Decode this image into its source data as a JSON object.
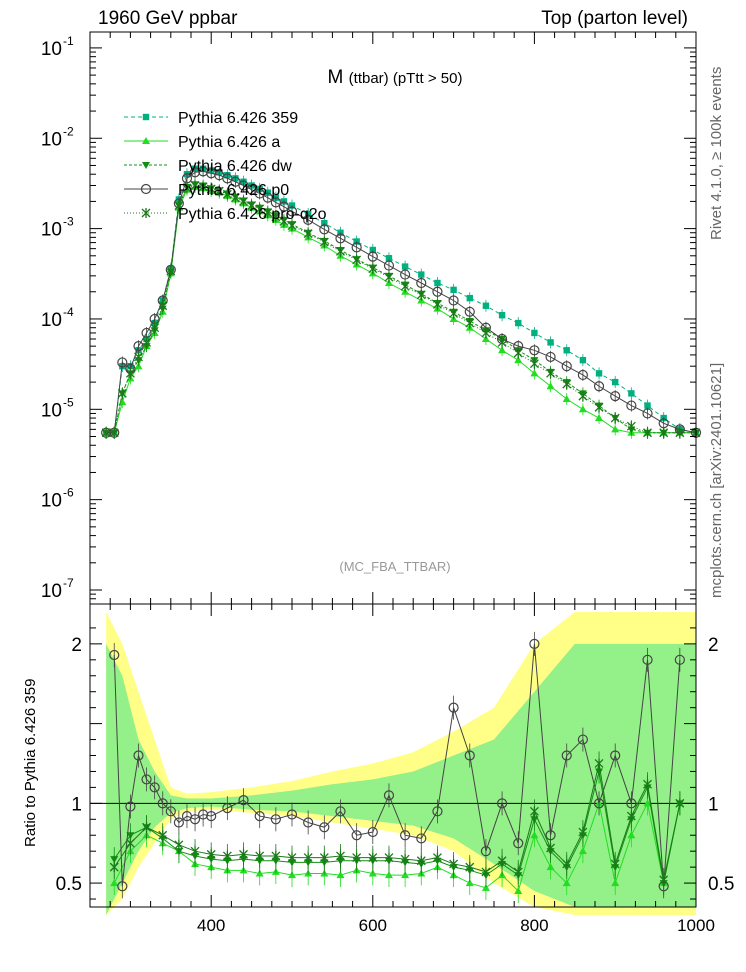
{
  "header": {
    "left": "1960 GeV ppbar",
    "right": "Top (parton level)"
  },
  "side": {
    "rivet": "Rivet 4.1.0, ≥ 100k events",
    "source": "mcplots.cern.ch [arXiv:2401.10621]"
  },
  "chart_data": [
    {
      "type": "line",
      "title": "M (ttbar) (pTtt > 50)",
      "title_main": "M",
      "title_sub": "(ttbar) (pTtt > 50)",
      "watermark": "(MC_FBA_TTBAR)",
      "xlabel": "",
      "ylabel": "",
      "yscale": "log",
      "xlim": [
        250,
        1000
      ],
      "ylim": [
        7e-08,
        0.15
      ],
      "x_ticks": [
        400,
        600,
        800,
        1000
      ],
      "y_ticks": [
        {
          "v": 1e-07,
          "label": "10",
          "exp": "-7"
        },
        {
          "v": 1e-06,
          "label": "10",
          "exp": "-6"
        },
        {
          "v": 1e-05,
          "label": "10",
          "exp": "-5"
        },
        {
          "v": 0.0001,
          "label": "10",
          "exp": "-4"
        },
        {
          "v": 0.001,
          "label": "10",
          "exp": "-3"
        },
        {
          "v": 0.01,
          "label": "10",
          "exp": "-2"
        },
        {
          "v": 0.1,
          "label": "10",
          "exp": "-1"
        }
      ],
      "series": [
        {
          "name": "Pythia 6.426 359",
          "color": "#00b080",
          "marker": "square",
          "dash": "4,3",
          "x": [
            270,
            280,
            290,
            300,
            310,
            320,
            330,
            340,
            350,
            360,
            370,
            380,
            390,
            400,
            410,
            420,
            430,
            440,
            450,
            460,
            470,
            480,
            490,
            500,
            520,
            540,
            560,
            580,
            600,
            620,
            640,
            660,
            680,
            700,
            720,
            740,
            760,
            780,
            800,
            820,
            840,
            860,
            880,
            900,
            920,
            940,
            960,
            980,
            1000
          ],
          "y": [
            5.5e-06,
            5.5e-06,
            3e-05,
            3e-05,
            4.5e-05,
            6e-05,
            9e-05,
            0.00016,
            0.00036,
            0.0021,
            0.004,
            0.0046,
            0.0046,
            0.0044,
            0.0042,
            0.0039,
            0.0036,
            0.0033,
            0.003,
            0.00275,
            0.0025,
            0.0022,
            0.002,
            0.0018,
            0.00145,
            0.00115,
            0.0009,
            0.00072,
            0.00058,
            0.00047,
            0.00038,
            0.00031,
            0.00025,
            0.00021,
            0.00017,
            0.00014,
            0.00011,
            9e-05,
            7e-05,
            5.5e-05,
            4.5e-05,
            3.5e-05,
            2.5e-05,
            2e-05,
            1.5e-05,
            1.1e-05,
            8e-06,
            6e-06,
            5.5e-06
          ]
        },
        {
          "name": "Pythia 6.426 a",
          "color": "#22dd22",
          "marker": "triangle-up",
          "dash": "",
          "x": [
            270,
            280,
            290,
            300,
            310,
            320,
            330,
            340,
            350,
            360,
            370,
            380,
            390,
            400,
            410,
            420,
            430,
            440,
            450,
            460,
            470,
            480,
            490,
            500,
            520,
            540,
            560,
            580,
            600,
            620,
            640,
            660,
            680,
            700,
            720,
            740,
            760,
            780,
            800,
            820,
            840,
            860,
            880,
            900,
            920,
            940,
            960,
            980,
            1000
          ],
          "y": [
            5.5e-06,
            5.5e-06,
            1.2e-05,
            2.2e-05,
            3e-05,
            5e-05,
            7e-05,
            0.00012,
            0.00032,
            0.0017,
            0.0027,
            0.0029,
            0.0028,
            0.0026,
            0.0025,
            0.0023,
            0.0021,
            0.0019,
            0.0017,
            0.00155,
            0.0014,
            0.00125,
            0.0011,
            0.001,
            0.0008,
            0.00065,
            0.0005,
            0.0004,
            0.00032,
            0.00025,
            0.0002,
            0.00016,
            0.00013,
            0.0001,
            8e-05,
            6e-05,
            4.5e-05,
            3.5e-05,
            2.5e-05,
            1.8e-05,
            1.3e-05,
            1e-05,
            8e-06,
            6e-06,
            5.5e-06,
            5.5e-06,
            5.5e-06,
            5.5e-06,
            5.5e-06
          ]
        },
        {
          "name": "Pythia 6.426 dw",
          "color": "#109010",
          "marker": "triangle-down",
          "dash": "3,2",
          "x": [
            270,
            280,
            290,
            300,
            310,
            320,
            330,
            340,
            350,
            360,
            370,
            380,
            390,
            400,
            410,
            420,
            430,
            440,
            450,
            460,
            470,
            480,
            490,
            500,
            520,
            540,
            560,
            580,
            600,
            620,
            640,
            660,
            680,
            700,
            720,
            740,
            760,
            780,
            800,
            820,
            840,
            860,
            880,
            900,
            920,
            940,
            960,
            980,
            1000
          ],
          "y": [
            5.5e-06,
            5.5e-06,
            1.5e-05,
            2.5e-05,
            3.5e-05,
            5e-05,
            7.5e-05,
            0.00013,
            0.00033,
            0.0018,
            0.0029,
            0.0031,
            0.003,
            0.0028,
            0.00265,
            0.00245,
            0.00225,
            0.00205,
            0.00185,
            0.0017,
            0.00155,
            0.0014,
            0.00125,
            0.00112,
            0.0009,
            0.00073,
            0.00058,
            0.00046,
            0.00037,
            0.0003,
            0.00024,
            0.00019,
            0.00015,
            0.00012,
            9.5e-05,
            7.5e-05,
            6e-05,
            4.5e-05,
            3.5e-05,
            2.6e-05,
            2e-05,
            1.5e-05,
            1.1e-05,
            8e-06,
            6e-06,
            5.5e-06,
            5.5e-06,
            5.5e-06,
            5.5e-06
          ]
        },
        {
          "name": "Pythia 6.426 p0",
          "color": "#444444",
          "marker": "circle-open",
          "dash": "",
          "x": [
            270,
            280,
            290,
            300,
            310,
            320,
            330,
            340,
            350,
            360,
            370,
            380,
            390,
            400,
            410,
            420,
            430,
            440,
            450,
            460,
            470,
            480,
            490,
            500,
            520,
            540,
            560,
            580,
            600,
            620,
            640,
            660,
            680,
            700,
            720,
            740,
            760,
            780,
            800,
            820,
            840,
            860,
            880,
            900,
            920,
            940,
            960,
            980,
            1000
          ],
          "y": [
            5.5e-06,
            5.5e-06,
            3.3e-05,
            2.8e-05,
            5e-05,
            7e-05,
            0.0001,
            0.00016,
            0.00035,
            0.0019,
            0.0036,
            0.0042,
            0.0043,
            0.0041,
            0.0039,
            0.0036,
            0.0033,
            0.003,
            0.0027,
            0.00245,
            0.0022,
            0.00195,
            0.00175,
            0.00155,
            0.00125,
            0.00098,
            0.00078,
            0.00062,
            0.00049,
            0.00039,
            0.00031,
            0.00025,
            0.0002,
            0.00016,
            0.00012,
            8e-05,
            6e-05,
            5e-05,
            4.5e-05,
            3.8e-05,
            3e-05,
            2.4e-05,
            1.8e-05,
            1.4e-05,
            1.1e-05,
            9e-06,
            7e-06,
            6e-06,
            5.5e-06
          ]
        },
        {
          "name": "Pythia 6.426 pro-q2o",
          "color": "#1a7a1a",
          "marker": "star",
          "dash": "1,2",
          "x": [
            270,
            280,
            290,
            300,
            310,
            320,
            330,
            340,
            350,
            360,
            370,
            380,
            390,
            400,
            410,
            420,
            430,
            440,
            450,
            460,
            470,
            480,
            490,
            500,
            520,
            540,
            560,
            580,
            600,
            620,
            640,
            660,
            680,
            700,
            720,
            740,
            760,
            780,
            800,
            820,
            840,
            860,
            880,
            900,
            920,
            940,
            960,
            980,
            1000
          ],
          "y": [
            5.5e-06,
            5.5e-06,
            1.5e-05,
            2.5e-05,
            3.8e-05,
            5.5e-05,
            8e-05,
            0.00014,
            0.00034,
            0.0018,
            0.0028,
            0.003,
            0.0029,
            0.00275,
            0.0026,
            0.0024,
            0.0022,
            0.002,
            0.0018,
            0.00165,
            0.0015,
            0.00135,
            0.0012,
            0.00108,
            0.00088,
            0.00071,
            0.00056,
            0.00045,
            0.00036,
            0.00029,
            0.00023,
            0.000185,
            0.000145,
            0.000115,
            9e-05,
            7e-05,
            5.5e-05,
            4.2e-05,
            3.2e-05,
            2.5e-05,
            1.9e-05,
            1.4e-05,
            1.05e-05,
            8e-06,
            6.5e-06,
            5.5e-06,
            5.5e-06,
            5.5e-06,
            5.5e-06
          ]
        }
      ]
    },
    {
      "type": "line",
      "title": "",
      "ylabel": "Ratio to Pythia 6.426 359",
      "yscale": "linear",
      "xlim": [
        250,
        1000
      ],
      "ylim": [
        0.35,
        2.25
      ],
      "x_ticks": [
        400,
        600,
        800,
        1000
      ],
      "y_ticks": [
        {
          "v": 0.5,
          "label": "0.5"
        },
        {
          "v": 1,
          "label": "1"
        },
        {
          "v": 2,
          "label": "2"
        }
      ],
      "band": {
        "x": [
          270,
          290,
          310,
          330,
          350,
          370,
          400,
          450,
          500,
          550,
          600,
          650,
          700,
          750,
          800,
          850,
          900,
          950,
          1000
        ],
        "yellow_lo": [
          0.3,
          0.4,
          0.6,
          0.75,
          0.9,
          0.95,
          0.96,
          0.94,
          0.92,
          0.88,
          0.84,
          0.8,
          0.7,
          0.5,
          0.35,
          0.3,
          0.3,
          0.3,
          0.3
        ],
        "yellow_hi": [
          2.2,
          2.0,
          1.7,
          1.4,
          1.1,
          1.06,
          1.07,
          1.1,
          1.14,
          1.2,
          1.25,
          1.32,
          1.45,
          1.6,
          2.0,
          2.2,
          2.2,
          2.2,
          2.2
        ],
        "green_lo": [
          0.3,
          0.5,
          0.7,
          0.85,
          0.94,
          0.97,
          0.98,
          0.96,
          0.95,
          0.92,
          0.89,
          0.86,
          0.78,
          0.62,
          0.45,
          0.35,
          0.35,
          0.35,
          0.35
        ],
        "green_hi": [
          2.0,
          1.8,
          1.4,
          1.2,
          1.05,
          1.03,
          1.03,
          1.05,
          1.08,
          1.12,
          1.15,
          1.2,
          1.3,
          1.4,
          1.7,
          2.0,
          2.0,
          2.0,
          2.0
        ]
      },
      "series": [
        {
          "name": "Pythia 6.426 a",
          "color": "#22dd22",
          "x": [
            280,
            300,
            320,
            340,
            360,
            380,
            400,
            420,
            440,
            460,
            480,
            500,
            520,
            540,
            560,
            580,
            600,
            620,
            640,
            660,
            680,
            700,
            720,
            740,
            760,
            780,
            800,
            820,
            840,
            860,
            880,
            900,
            920,
            940,
            960,
            980
          ],
          "y": [
            0.5,
            0.7,
            0.8,
            0.75,
            0.7,
            0.62,
            0.6,
            0.58,
            0.58,
            0.56,
            0.57,
            0.55,
            0.56,
            0.56,
            0.55,
            0.58,
            0.56,
            0.55,
            0.55,
            0.56,
            0.6,
            0.55,
            0.5,
            0.47,
            0.55,
            0.45,
            0.8,
            0.6,
            0.5,
            0.7,
            1.0,
            0.5,
            0.8,
            1.0,
            0.5,
            1.0
          ]
        },
        {
          "name": "Pythia 6.426 dw",
          "color": "#109010",
          "x": [
            280,
            300,
            320,
            340,
            360,
            380,
            400,
            420,
            440,
            460,
            480,
            500,
            520,
            540,
            560,
            580,
            600,
            620,
            640,
            660,
            680,
            700,
            720,
            740,
            760,
            780,
            800,
            820,
            840,
            860,
            880,
            900,
            920,
            940,
            960,
            980
          ],
          "y": [
            0.65,
            0.8,
            0.85,
            0.78,
            0.7,
            0.67,
            0.65,
            0.64,
            0.65,
            0.64,
            0.64,
            0.63,
            0.63,
            0.63,
            0.64,
            0.64,
            0.64,
            0.64,
            0.63,
            0.62,
            0.64,
            0.6,
            0.58,
            0.55,
            0.62,
            0.55,
            0.9,
            0.7,
            0.6,
            0.8,
            1.2,
            0.6,
            0.9,
            1.1,
            0.5,
            1.0
          ]
        },
        {
          "name": "Pythia 6.426 p0",
          "color": "#444444",
          "x": [
            280,
            290,
            300,
            310,
            320,
            330,
            340,
            350,
            360,
            370,
            380,
            390,
            400,
            420,
            440,
            460,
            480,
            500,
            520,
            540,
            560,
            580,
            600,
            620,
            640,
            660,
            680,
            700,
            720,
            740,
            760,
            780,
            800,
            820,
            840,
            860,
            880,
            900,
            920,
            940,
            960,
            980
          ],
          "y": [
            1.93,
            0.48,
            0.98,
            1.3,
            1.15,
            1.1,
            1.0,
            0.95,
            0.88,
            0.92,
            0.9,
            0.93,
            0.92,
            0.97,
            1.02,
            0.92,
            0.9,
            0.93,
            0.88,
            0.85,
            0.95,
            0.8,
            0.82,
            1.05,
            0.8,
            0.78,
            0.95,
            1.6,
            1.3,
            0.7,
            1.0,
            0.75,
            2.0,
            0.8,
            1.3,
            1.4,
            1.0,
            1.3,
            1.0,
            1.9,
            0.48,
            1.9
          ]
        },
        {
          "name": "Pythia 6.426 pro-q2o",
          "color": "#1a7a1a",
          "x": [
            280,
            300,
            320,
            340,
            360,
            380,
            400,
            420,
            440,
            460,
            480,
            500,
            520,
            540,
            560,
            580,
            600,
            620,
            640,
            660,
            680,
            700,
            720,
            740,
            760,
            780,
            800,
            820,
            840,
            860,
            880,
            900,
            920,
            940,
            960,
            980
          ],
          "y": [
            0.6,
            0.75,
            0.85,
            0.8,
            0.74,
            0.7,
            0.68,
            0.67,
            0.68,
            0.67,
            0.67,
            0.66,
            0.66,
            0.66,
            0.67,
            0.66,
            0.66,
            0.66,
            0.65,
            0.64,
            0.66,
            0.62,
            0.6,
            0.57,
            0.64,
            0.57,
            0.95,
            0.72,
            0.62,
            0.82,
            1.25,
            0.62,
            0.92,
            1.12,
            0.52,
            1.0
          ]
        }
      ]
    }
  ]
}
